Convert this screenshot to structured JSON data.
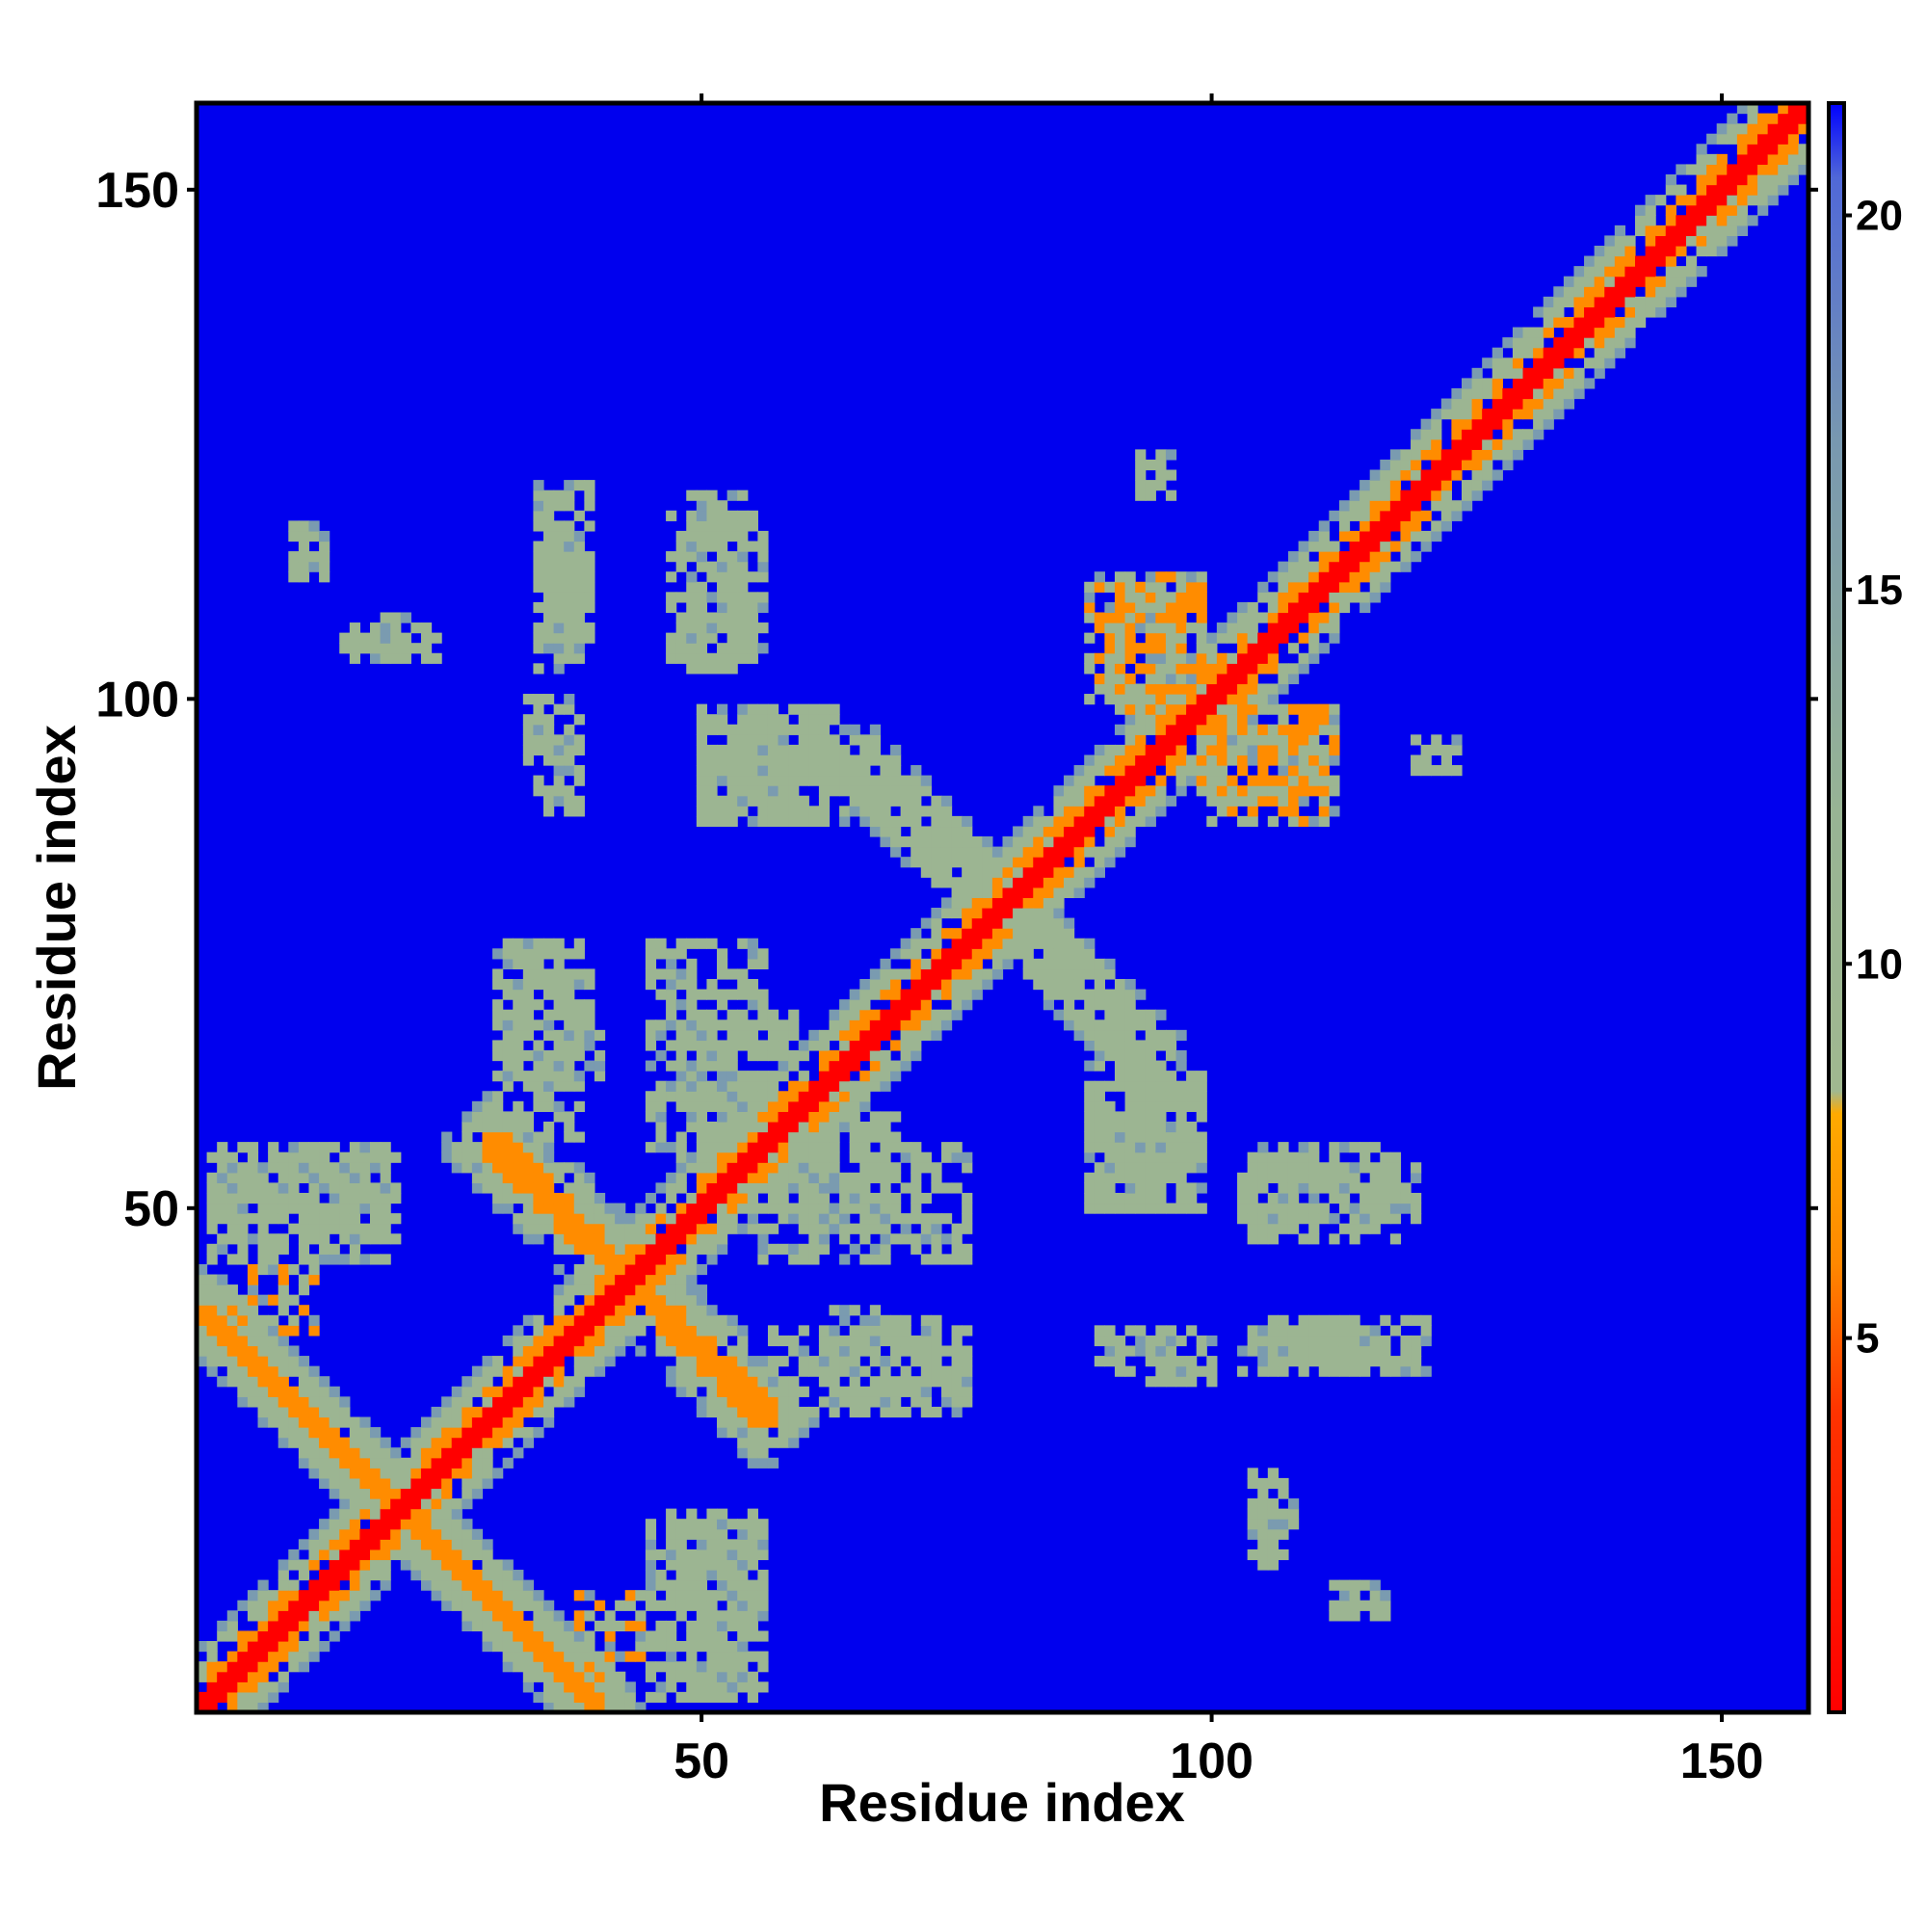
{
  "chart_data": {
    "type": "heatmap",
    "title": "",
    "xlabel": "Residue index",
    "ylabel": "Residue index",
    "xlim": [
      1,
      158
    ],
    "ylim": [
      1,
      158
    ],
    "x_ticks": [
      "50",
      "100",
      "150"
    ],
    "y_ticks": [
      "50",
      "100",
      "150"
    ],
    "x_tick_values": [
      50,
      100,
      150
    ],
    "y_tick_values": [
      50,
      100,
      150
    ],
    "colorbar": {
      "ticks": [
        "5",
        "10",
        "15",
        "20"
      ],
      "tick_values": [
        5,
        10,
        15,
        20
      ],
      "range": [
        0,
        21.5
      ],
      "stops": [
        {
          "value": 0,
          "color": "#ff0000"
        },
        {
          "value": 4,
          "color": "#ff3300"
        },
        {
          "value": 6,
          "color": "#ff8800"
        },
        {
          "value": 8,
          "color": "#ffaa00"
        },
        {
          "value": 8.3,
          "color": "#a0b890"
        },
        {
          "value": 12,
          "color": "#98b494"
        },
        {
          "value": 17,
          "color": "#7898b0"
        },
        {
          "value": 20.5,
          "color": "#5068d8"
        },
        {
          "value": 21.5,
          "color": "#0000ff"
        }
      ]
    },
    "colors": {
      "background": "#0000ee",
      "near": "#ff0000",
      "close": "#ff8c00",
      "mid": "#9cb592",
      "far": "#7a9bb0"
    },
    "diagonal": {
      "start": 1,
      "end": 158,
      "core_width": 1.6,
      "orange_width": 3.0,
      "shell_width": 6.5
    },
    "anti_diagonals": [
      {
        "from": [
          30,
          57
        ],
        "to": [
          56,
          29
        ],
        "intensity": "close"
      },
      {
        "from": [
          1,
          40
        ],
        "to": [
          40,
          1
        ],
        "intensity": "close"
      },
      {
        "from": [
          66,
          93
        ],
        "to": [
          93,
          66
        ],
        "intensity": "mid"
      }
    ],
    "contact_patches": [
      {
        "x": [
          2,
          19
        ],
        "y": [
          48,
          56
        ],
        "intensity": "mid"
      },
      {
        "x": [
          30,
          38
        ],
        "y": [
          57,
          76
        ],
        "intensity": "mid"
      },
      {
        "x": [
          45,
          56
        ],
        "y": [
          56,
          76
        ],
        "intensity": "mid"
      },
      {
        "x": [
          55,
          69
        ],
        "y": [
          48,
          60
        ],
        "intensity": "mid"
      },
      {
        "x": [
          63,
          73
        ],
        "y": [
          30,
          40
        ],
        "intensity": "mid"
      },
      {
        "x": [
          45,
          55
        ],
        "y": [
          2,
          20
        ],
        "intensity": "mid"
      },
      {
        "x": [
          38,
          44
        ],
        "y": [
          2,
          12
        ],
        "intensity": "close"
      },
      {
        "x": [
          33,
          38
        ],
        "y": [
          94,
          100
        ],
        "intensity": "mid"
      },
      {
        "x": [
          34,
          38
        ],
        "y": [
          104,
          118
        ],
        "intensity": "mid"
      },
      {
        "x": [
          47,
          56
        ],
        "y": [
          104,
          118
        ],
        "intensity": "mid"
      },
      {
        "x": [
          50,
          62
        ],
        "y": [
          89,
          98
        ],
        "intensity": "mid"
      },
      {
        "x": [
          90,
          99
        ],
        "y": [
          99,
          111
        ],
        "intensity": "close"
      },
      {
        "x": [
          100,
          112
        ],
        "y": [
          88,
          99
        ],
        "intensity": "close"
      },
      {
        "x": [
          88,
          99
        ],
        "y": [
          50,
          64
        ],
        "intensity": "mid"
      },
      {
        "x": [
          103,
          120
        ],
        "y": [
          49,
          54
        ],
        "intensity": "mid"
      },
      {
        "x": [
          103,
          121
        ],
        "y": [
          34,
          39
        ],
        "intensity": "mid"
      },
      {
        "x": [
          89,
          96
        ],
        "y": [
          34,
          38
        ],
        "intensity": "mid"
      },
      {
        "x": [
          104,
          106
        ],
        "y": [
          17,
          24
        ],
        "intensity": "mid"
      },
      {
        "x": [
          112,
          116
        ],
        "y": [
          10,
          13
        ],
        "intensity": "mid"
      },
      {
        "x": [
          10,
          13
        ],
        "y": [
          114,
          117
        ],
        "intensity": "mid"
      },
      {
        "x": [
          15,
          23
        ],
        "y": [
          104,
          108
        ],
        "intensity": "mid"
      },
      {
        "x": [
          93,
          96
        ],
        "y": [
          120,
          124
        ],
        "intensity": "mid"
      }
    ]
  }
}
